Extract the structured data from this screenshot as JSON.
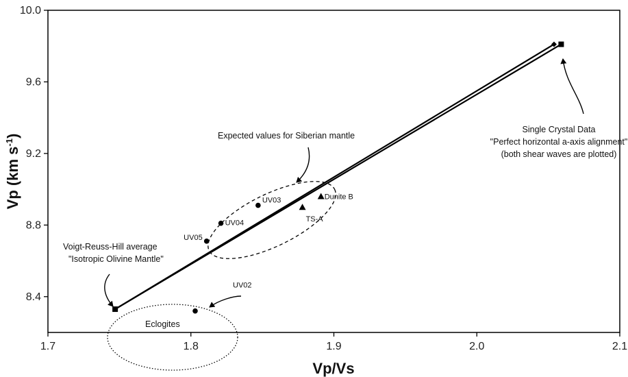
{
  "chart_data": {
    "type": "scatter",
    "title": "",
    "xlabel": "Vp/Vs",
    "ylabel_main": "Vp (km s",
    "ylabel_sup": "-1",
    "ylabel_close": ")",
    "xlim": [
      1.7,
      2.1
    ],
    "ylim": [
      8.2,
      10.0
    ],
    "xticks": [
      1.7,
      1.8,
      1.9,
      2.0,
      2.1
    ],
    "xtick_labels": [
      "1.7",
      "1.8",
      "1.9",
      "2.0",
      "2.1"
    ],
    "yticks": [
      8.4,
      8.8,
      9.2,
      9.6,
      10.0
    ],
    "ytick_labels": [
      "8.4",
      "8.8",
      "9.2",
      "9.6",
      "10.0"
    ],
    "grid": false,
    "lines": [
      {
        "x": [
          1.747,
          2.059
        ],
        "y": [
          8.33,
          9.81
        ]
      },
      {
        "x": [
          1.747,
          2.054
        ],
        "y": [
          8.33,
          9.81
        ]
      }
    ],
    "points": [
      {
        "label": "UV05",
        "x": 1.811,
        "y": 8.71,
        "marker": "circle"
      },
      {
        "label": "UV04",
        "x": 1.821,
        "y": 8.81,
        "marker": "circle"
      },
      {
        "label": "UV03",
        "x": 1.847,
        "y": 8.91,
        "marker": "circle"
      },
      {
        "label": "UV02",
        "x": 1.803,
        "y": 8.32,
        "marker": "circle"
      },
      {
        "label": "TS-A",
        "x": 1.878,
        "y": 8.9,
        "marker": "triangle"
      },
      {
        "label": "Dunite B",
        "x": 1.891,
        "y": 8.96,
        "marker": "triangle"
      },
      {
        "label": "",
        "x": 1.747,
        "y": 8.33,
        "marker": "square"
      },
      {
        "label": "",
        "x": 2.059,
        "y": 9.81,
        "marker": "square"
      },
      {
        "label": "",
        "x": 2.054,
        "y": 9.81,
        "marker": "diamond"
      }
    ],
    "annotations": {
      "vrh_line1": "Voigt-Reuss-Hill average",
      "vrh_line2": "\"Isotropic Olivine Mantle\"",
      "expected": "Expected values for Siberian mantle",
      "single_line1": "Single Crystal Data",
      "single_line2": "\"Perfect horizontal a-axis alignment\"",
      "single_line3": "(both shear waves are plotted)",
      "eclogites": "Eclogites"
    }
  }
}
